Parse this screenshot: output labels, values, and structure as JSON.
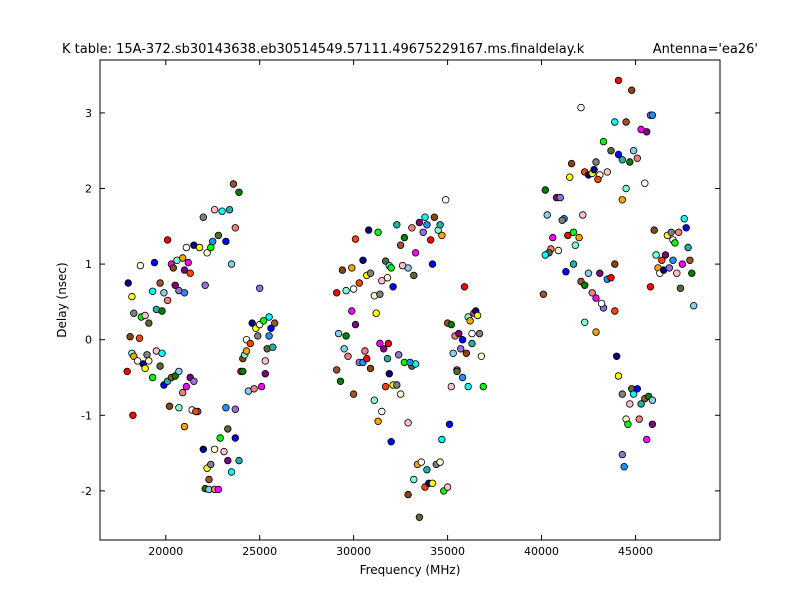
{
  "chart_data": {
    "type": "scatter",
    "title_left": "K table: 15A-372.sb30143638.eb30514549.57111.49675229167.ms.finaldelay.k",
    "title_right": "Antenna='ea26'",
    "xlabel": "Frequency (MHz)",
    "ylabel": "Delay (nsec)",
    "xlim": [
      16500,
      49500
    ],
    "ylim": [
      -2.65,
      3.7
    ],
    "xticks": [
      20000,
      25000,
      30000,
      35000,
      40000,
      45000
    ],
    "yticks": [
      -2,
      -1,
      0,
      1,
      2,
      3
    ],
    "grid": false,
    "marker": "circle",
    "palette": [
      "#000080",
      "#00ffff",
      "#ff00ff",
      "#ffa500",
      "#00ff00",
      "#008000",
      "#ff0000",
      "#ffff00",
      "#0000ff",
      "#800080",
      "#ffffff",
      "#ffc0cb",
      "#87ceeb",
      "#8b4513",
      "#808080",
      "#20b2aa",
      "#9370db",
      "#ff4500",
      "#556b2f",
      "#f08080",
      "#7fffd4",
      "#fafad2",
      "#a0522d",
      "#1e90ff"
    ],
    "points": [
      {
        "x": 18000,
        "y": 0.75
      },
      {
        "x": 18200,
        "y": 0.57
      },
      {
        "x": 18300,
        "y": 0.35
      },
      {
        "x": 18650,
        "y": 0.98
      },
      {
        "x": 18700,
        "y": 0.3
      },
      {
        "x": 18900,
        "y": 0.32
      },
      {
        "x": 19100,
        "y": 0.22
      },
      {
        "x": 19300,
        "y": 0.64
      },
      {
        "x": 19400,
        "y": 1.02
      },
      {
        "x": 19500,
        "y": 0.4
      },
      {
        "x": 19700,
        "y": 0.75
      },
      {
        "x": 19800,
        "y": 0.38
      },
      {
        "x": 19900,
        "y": 0.62
      },
      {
        "x": 20100,
        "y": 0.52
      },
      {
        "x": 20300,
        "y": 1.0
      },
      {
        "x": 20500,
        "y": 0.72
      },
      {
        "x": 20700,
        "y": 0.65
      },
      {
        "x": 21000,
        "y": 0.62
      },
      {
        "x": 20100,
        "y": 1.32
      },
      {
        "x": 20400,
        "y": 0.95
      },
      {
        "x": 20600,
        "y": 1.05
      },
      {
        "x": 20900,
        "y": 1.08
      },
      {
        "x": 21100,
        "y": 1.22
      },
      {
        "x": 21300,
        "y": 0.88
      },
      {
        "x": 21500,
        "y": 1.25
      },
      {
        "x": 21800,
        "y": 1.22
      },
      {
        "x": 22000,
        "y": 1.62
      },
      {
        "x": 22200,
        "y": 1.15
      },
      {
        "x": 22400,
        "y": 1.22
      },
      {
        "x": 22600,
        "y": 1.72
      },
      {
        "x": 22800,
        "y": 1.38
      },
      {
        "x": 23000,
        "y": 1.7
      },
      {
        "x": 23200,
        "y": 1.3
      },
      {
        "x": 23400,
        "y": 1.72
      },
      {
        "x": 23600,
        "y": 2.06
      },
      {
        "x": 23900,
        "y": 1.95
      },
      {
        "x": 23500,
        "y": 1.0
      },
      {
        "x": 23700,
        "y": 1.48
      },
      {
        "x": 21200,
        "y": 1.02
      },
      {
        "x": 21000,
        "y": 0.92
      },
      {
        "x": 22100,
        "y": 0.72
      },
      {
        "x": 22500,
        "y": 1.3
      },
      {
        "x": 17950,
        "y": -0.42
      },
      {
        "x": 18100,
        "y": 0.04
      },
      {
        "x": 18200,
        "y": -0.18
      },
      {
        "x": 18300,
        "y": -0.22
      },
      {
        "x": 18500,
        "y": -0.28
      },
      {
        "x": 18600,
        "y": 0.02
      },
      {
        "x": 18800,
        "y": -0.32
      },
      {
        "x": 18900,
        "y": -0.38
      },
      {
        "x": 19000,
        "y": -0.2
      },
      {
        "x": 19100,
        "y": -0.28
      },
      {
        "x": 19300,
        "y": -0.5
      },
      {
        "x": 19500,
        "y": -0.15
      },
      {
        "x": 19700,
        "y": -0.35
      },
      {
        "x": 19800,
        "y": -0.18
      },
      {
        "x": 19900,
        "y": -0.6
      },
      {
        "x": 20100,
        "y": -0.55
      },
      {
        "x": 20300,
        "y": -0.5
      },
      {
        "x": 20500,
        "y": -0.48
      },
      {
        "x": 20700,
        "y": -0.42
      },
      {
        "x": 20900,
        "y": -0.7
      },
      {
        "x": 21100,
        "y": -0.62
      },
      {
        "x": 21300,
        "y": -0.5
      },
      {
        "x": 21500,
        "y": -0.55
      },
      {
        "x": 21700,
        "y": -0.95
      },
      {
        "x": 18250,
        "y": -1.0
      },
      {
        "x": 20200,
        "y": -0.88
      },
      {
        "x": 20700,
        "y": -0.9
      },
      {
        "x": 21000,
        "y": -1.15
      },
      {
        "x": 21400,
        "y": -0.93
      },
      {
        "x": 21600,
        "y": -0.95
      },
      {
        "x": 22000,
        "y": -1.45
      },
      {
        "x": 22200,
        "y": -1.7
      },
      {
        "x": 22400,
        "y": -1.65
      },
      {
        "x": 22600,
        "y": -1.45
      },
      {
        "x": 22900,
        "y": -1.3
      },
      {
        "x": 23100,
        "y": -1.48
      },
      {
        "x": 23300,
        "y": -1.18
      },
      {
        "x": 23500,
        "y": -1.75
      },
      {
        "x": 23700,
        "y": -1.3
      },
      {
        "x": 23900,
        "y": -1.6
      },
      {
        "x": 22300,
        "y": -1.85
      },
      {
        "x": 22100,
        "y": -1.97
      },
      {
        "x": 22300,
        "y": -1.98
      },
      {
        "x": 22600,
        "y": -1.98
      },
      {
        "x": 22800,
        "y": -1.98
      },
      {
        "x": 23300,
        "y": -1.6
      },
      {
        "x": 23700,
        "y": -0.92
      },
      {
        "x": 23200,
        "y": -0.9
      },
      {
        "x": 24000,
        "y": -0.42
      },
      {
        "x": 24100,
        "y": -0.25
      },
      {
        "x": 24200,
        "y": -0.2
      },
      {
        "x": 24300,
        "y": -0.15
      },
      {
        "x": 24300,
        "y": 0.0
      },
      {
        "x": 24500,
        "y": -0.05
      },
      {
        "x": 24600,
        "y": 0.22
      },
      {
        "x": 24800,
        "y": 0.15
      },
      {
        "x": 24900,
        "y": 0.05
      },
      {
        "x": 25000,
        "y": 0.2
      },
      {
        "x": 25200,
        "y": 0.25
      },
      {
        "x": 25300,
        "y": -0.28
      },
      {
        "x": 25400,
        "y": -0.12
      },
      {
        "x": 25500,
        "y": 0.3
      },
      {
        "x": 25600,
        "y": 0.15
      },
      {
        "x": 25700,
        "y": -0.1
      },
      {
        "x": 25800,
        "y": 0.22
      },
      {
        "x": 24100,
        "y": -0.42
      },
      {
        "x": 24400,
        "y": -0.68
      },
      {
        "x": 24700,
        "y": -0.65
      },
      {
        "x": 25100,
        "y": -0.62
      },
      {
        "x": 25300,
        "y": -0.45
      },
      {
        "x": 25000,
        "y": 0.68
      },
      {
        "x": 25500,
        "y": 0.05
      },
      {
        "x": 29100,
        "y": 0.62
      },
      {
        "x": 29400,
        "y": 0.92
      },
      {
        "x": 29600,
        "y": 0.65
      },
      {
        "x": 29900,
        "y": 0.95
      },
      {
        "x": 30000,
        "y": 0.67
      },
      {
        "x": 30300,
        "y": 0.75
      },
      {
        "x": 30500,
        "y": 1.05
      },
      {
        "x": 30700,
        "y": 0.85
      },
      {
        "x": 30900,
        "y": 0.88
      },
      {
        "x": 31100,
        "y": 0.58
      },
      {
        "x": 31300,
        "y": 1.42
      },
      {
        "x": 31500,
        "y": 0.78
      },
      {
        "x": 31700,
        "y": 1.04
      },
      {
        "x": 31900,
        "y": 0.98
      },
      {
        "x": 32100,
        "y": 0.7
      },
      {
        "x": 32300,
        "y": 1.52
      },
      {
        "x": 32500,
        "y": 1.25
      },
      {
        "x": 32700,
        "y": 1.35
      },
      {
        "x": 32900,
        "y": 0.95
      },
      {
        "x": 33100,
        "y": 1.48
      },
      {
        "x": 33300,
        "y": 1.15
      },
      {
        "x": 33500,
        "y": 1.55
      },
      {
        "x": 33700,
        "y": 1.42
      },
      {
        "x": 33900,
        "y": 1.52
      },
      {
        "x": 34100,
        "y": 1.32
      },
      {
        "x": 34300,
        "y": 1.62
      },
      {
        "x": 34500,
        "y": 1.45
      },
      {
        "x": 34700,
        "y": 1.38
      },
      {
        "x": 34900,
        "y": 1.85
      },
      {
        "x": 30100,
        "y": 1.33
      },
      {
        "x": 30800,
        "y": 1.45
      },
      {
        "x": 31200,
        "y": 0.35
      },
      {
        "x": 31400,
        "y": 0.6
      },
      {
        "x": 31800,
        "y": 0.82
      },
      {
        "x": 32000,
        "y": 0.95
      },
      {
        "x": 32600,
        "y": 0.98
      },
      {
        "x": 33200,
        "y": 0.85
      },
      {
        "x": 33800,
        "y": 1.62
      },
      {
        "x": 34200,
        "y": 1.0
      },
      {
        "x": 34600,
        "y": 1.52
      },
      {
        "x": 29100,
        "y": -0.4
      },
      {
        "x": 29300,
        "y": -0.55
      },
      {
        "x": 29500,
        "y": -0.12
      },
      {
        "x": 29700,
        "y": -0.22
      },
      {
        "x": 29900,
        "y": 0.38
      },
      {
        "x": 30100,
        "y": 0.2
      },
      {
        "x": 30300,
        "y": -0.3
      },
      {
        "x": 30500,
        "y": -0.3
      },
      {
        "x": 30700,
        "y": -0.25
      },
      {
        "x": 30900,
        "y": -0.38
      },
      {
        "x": 31100,
        "y": -0.8
      },
      {
        "x": 31300,
        "y": -1.08
      },
      {
        "x": 31500,
        "y": -0.95
      },
      {
        "x": 31700,
        "y": -0.62
      },
      {
        "x": 31900,
        "y": -0.45
      },
      {
        "x": 32100,
        "y": -0.6
      },
      {
        "x": 32300,
        "y": -0.6
      },
      {
        "x": 32500,
        "y": -0.72
      },
      {
        "x": 32700,
        "y": -0.3
      },
      {
        "x": 32900,
        "y": -1.1
      },
      {
        "x": 33100,
        "y": -0.35
      },
      {
        "x": 33300,
        "y": -0.32
      },
      {
        "x": 32000,
        "y": -1.35
      },
      {
        "x": 31800,
        "y": -0.25
      },
      {
        "x": 30000,
        "y": -0.72
      },
      {
        "x": 29600,
        "y": 0.05
      },
      {
        "x": 29200,
        "y": 0.08
      },
      {
        "x": 30600,
        "y": -0.15
      },
      {
        "x": 31400,
        "y": -0.05
      },
      {
        "x": 31600,
        "y": -0.12
      },
      {
        "x": 32400,
        "y": -0.2
      },
      {
        "x": 33000,
        "y": -0.3
      },
      {
        "x": 31850,
        "y": -0.05
      },
      {
        "x": 32900,
        "y": -2.05
      },
      {
        "x": 33200,
        "y": -1.85
      },
      {
        "x": 33400,
        "y": -1.65
      },
      {
        "x": 33600,
        "y": -1.62
      },
      {
        "x": 33800,
        "y": -1.95
      },
      {
        "x": 34000,
        "y": -1.9
      },
      {
        "x": 34200,
        "y": -1.9
      },
      {
        "x": 34400,
        "y": -1.65
      },
      {
        "x": 34600,
        "y": -1.62
      },
      {
        "x": 34800,
        "y": -2.0
      },
      {
        "x": 35000,
        "y": -1.95
      },
      {
        "x": 33500,
        "y": -2.35
      },
      {
        "x": 34700,
        "y": -1.32
      },
      {
        "x": 35100,
        "y": -1.12
      },
      {
        "x": 33900,
        "y": -1.72
      },
      {
        "x": 35000,
        "y": 0.22
      },
      {
        "x": 35200,
        "y": 0.2
      },
      {
        "x": 35300,
        "y": -0.18
      },
      {
        "x": 35400,
        "y": 0.05
      },
      {
        "x": 35500,
        "y": -0.4
      },
      {
        "x": 35600,
        "y": 0.08
      },
      {
        "x": 35700,
        "y": -0.12
      },
      {
        "x": 35800,
        "y": -0.5
      },
      {
        "x": 35900,
        "y": 0.7
      },
      {
        "x": 36000,
        "y": -0.18
      },
      {
        "x": 36100,
        "y": 0.3
      },
      {
        "x": 36200,
        "y": 0.25
      },
      {
        "x": 36300,
        "y": 0.08
      },
      {
        "x": 36400,
        "y": 0.35
      },
      {
        "x": 36500,
        "y": 0.38
      },
      {
        "x": 36600,
        "y": 0.32
      },
      {
        "x": 36700,
        "y": 0.08
      },
      {
        "x": 36800,
        "y": -0.22
      },
      {
        "x": 36900,
        "y": -0.62
      },
      {
        "x": 35200,
        "y": -0.62
      },
      {
        "x": 35500,
        "y": -0.42
      },
      {
        "x": 36100,
        "y": -0.62
      },
      {
        "x": 35800,
        "y": 0.0
      },
      {
        "x": 36300,
        "y": -0.05
      },
      {
        "x": 40100,
        "y": 0.6
      },
      {
        "x": 40200,
        "y": 1.98
      },
      {
        "x": 40300,
        "y": 1.65
      },
      {
        "x": 40500,
        "y": 1.2
      },
      {
        "x": 40600,
        "y": 1.35
      },
      {
        "x": 40800,
        "y": 1.88
      },
      {
        "x": 41000,
        "y": 1.88
      },
      {
        "x": 41200,
        "y": 1.6
      },
      {
        "x": 41400,
        "y": 1.38
      },
      {
        "x": 41600,
        "y": 2.33
      },
      {
        "x": 41800,
        "y": 1.25
      },
      {
        "x": 42000,
        "y": 1.35
      },
      {
        "x": 42100,
        "y": 3.07
      },
      {
        "x": 42300,
        "y": 2.22
      },
      {
        "x": 42500,
        "y": 2.18
      },
      {
        "x": 42700,
        "y": 2.2
      },
      {
        "x": 42900,
        "y": 2.35
      },
      {
        "x": 43100,
        "y": 2.18
      },
      {
        "x": 43300,
        "y": 2.62
      },
      {
        "x": 43500,
        "y": 2.22
      },
      {
        "x": 43700,
        "y": 2.5
      },
      {
        "x": 43900,
        "y": 2.88
      },
      {
        "x": 44100,
        "y": 2.45
      },
      {
        "x": 44300,
        "y": 2.38
      },
      {
        "x": 44500,
        "y": 2.88
      },
      {
        "x": 44700,
        "y": 2.35
      },
      {
        "x": 44900,
        "y": 2.5
      },
      {
        "x": 45100,
        "y": 2.4
      },
      {
        "x": 45300,
        "y": 2.78
      },
      {
        "x": 45600,
        "y": 2.75
      },
      {
        "x": 45800,
        "y": 2.97
      },
      {
        "x": 45900,
        "y": 2.97
      },
      {
        "x": 44100,
        "y": 3.43
      },
      {
        "x": 44800,
        "y": 3.3
      },
      {
        "x": 44500,
        "y": 2.0
      },
      {
        "x": 44300,
        "y": 1.85
      },
      {
        "x": 45500,
        "y": 2.07
      },
      {
        "x": 43000,
        "y": 2.12
      },
      {
        "x": 42800,
        "y": 2.25
      },
      {
        "x": 41500,
        "y": 2.15
      },
      {
        "x": 41100,
        "y": 1.58
      },
      {
        "x": 40900,
        "y": 1.18
      },
      {
        "x": 41700,
        "y": 1.42
      },
      {
        "x": 42200,
        "y": 1.65
      },
      {
        "x": 40400,
        "y": 1.15
      },
      {
        "x": 40200,
        "y": 1.12
      },
      {
        "x": 41300,
        "y": 0.9
      },
      {
        "x": 41700,
        "y": 1.0
      },
      {
        "x": 42100,
        "y": 0.77
      },
      {
        "x": 42300,
        "y": 0.72
      },
      {
        "x": 42500,
        "y": 0.88
      },
      {
        "x": 42700,
        "y": 0.62
      },
      {
        "x": 42900,
        "y": 0.55
      },
      {
        "x": 43100,
        "y": 0.88
      },
      {
        "x": 43300,
        "y": 0.42
      },
      {
        "x": 43500,
        "y": 0.8
      },
      {
        "x": 43700,
        "y": 0.82
      },
      {
        "x": 43900,
        "y": 1.0
      },
      {
        "x": 42300,
        "y": 0.23
      },
      {
        "x": 42900,
        "y": 0.1
      },
      {
        "x": 43200,
        "y": 0.48
      },
      {
        "x": 43900,
        "y": 0.38
      },
      {
        "x": 44000,
        "y": -0.22
      },
      {
        "x": 44100,
        "y": -0.48
      },
      {
        "x": 44300,
        "y": -0.72
      },
      {
        "x": 44500,
        "y": -1.05
      },
      {
        "x": 44600,
        "y": -1.12
      },
      {
        "x": 44700,
        "y": -0.85
      },
      {
        "x": 44800,
        "y": -0.65
      },
      {
        "x": 44900,
        "y": -0.72
      },
      {
        "x": 45100,
        "y": -0.65
      },
      {
        "x": 45300,
        "y": -0.85
      },
      {
        "x": 45500,
        "y": -0.78
      },
      {
        "x": 45700,
        "y": -0.75
      },
      {
        "x": 45900,
        "y": -0.8
      },
      {
        "x": 45200,
        "y": -1.05
      },
      {
        "x": 45600,
        "y": -1.32
      },
      {
        "x": 45900,
        "y": -1.12
      },
      {
        "x": 44300,
        "y": -1.52
      },
      {
        "x": 44400,
        "y": -1.68
      },
      {
        "x": 45800,
        "y": 0.7
      },
      {
        "x": 46000,
        "y": 1.45
      },
      {
        "x": 46100,
        "y": 1.12
      },
      {
        "x": 46200,
        "y": 0.95
      },
      {
        "x": 46300,
        "y": 0.88
      },
      {
        "x": 46400,
        "y": 1.05
      },
      {
        "x": 46500,
        "y": 0.92
      },
      {
        "x": 46700,
        "y": 1.38
      },
      {
        "x": 46900,
        "y": 1.42
      },
      {
        "x": 47000,
        "y": 1.32
      },
      {
        "x": 47100,
        "y": 1.28
      },
      {
        "x": 47200,
        "y": 0.88
      },
      {
        "x": 47400,
        "y": 0.68
      },
      {
        "x": 47600,
        "y": 1.6
      },
      {
        "x": 47700,
        "y": 1.48
      },
      {
        "x": 47800,
        "y": 1.22
      },
      {
        "x": 47900,
        "y": 1.05
      },
      {
        "x": 48000,
        "y": 0.88
      },
      {
        "x": 48100,
        "y": 0.45
      },
      {
        "x": 47300,
        "y": 1.42
      },
      {
        "x": 47500,
        "y": 1.0
      },
      {
        "x": 46600,
        "y": 1.12
      },
      {
        "x": 46800,
        "y": 0.95
      },
      {
        "x": 47000,
        "y": 1.05
      }
    ]
  }
}
